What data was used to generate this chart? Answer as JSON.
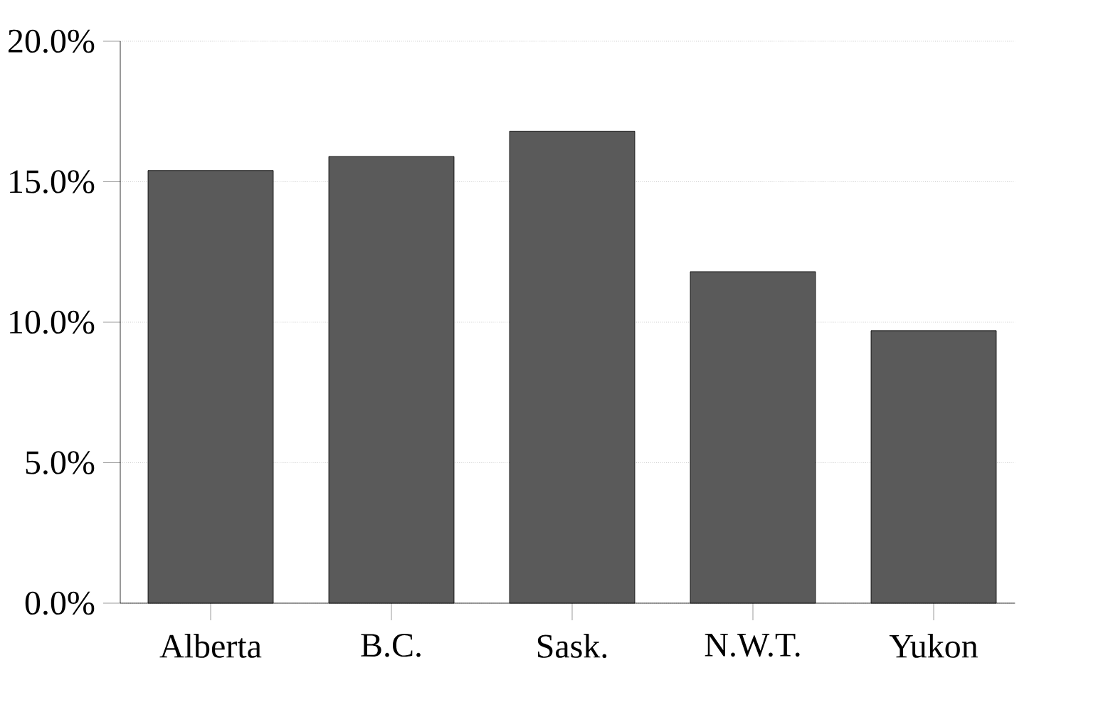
{
  "chart_data": {
    "type": "bar",
    "categories": [
      "Alberta",
      "B.C.",
      "Sask.",
      "N.W.T.",
      "Yukon"
    ],
    "values": [
      15.4,
      15.9,
      16.8,
      11.8,
      9.7
    ],
    "color": "#5a5a5a",
    "ylim": [
      0,
      20
    ],
    "yticks": [
      {
        "value": 0,
        "label": "0.0%"
      },
      {
        "value": 5,
        "label": "5.0%"
      },
      {
        "value": 10,
        "label": "10.0%"
      },
      {
        "value": 15,
        "label": "15.0%"
      },
      {
        "value": 20,
        "label": "20.0%"
      }
    ],
    "grid": "y"
  }
}
